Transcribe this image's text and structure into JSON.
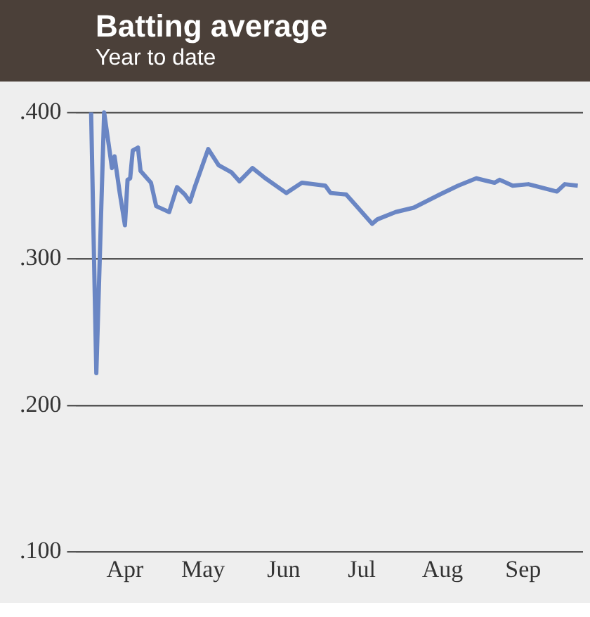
{
  "chart_data": {
    "type": "line",
    "title": "Batting average",
    "subtitle": "Year to date",
    "x": [
      "--04-02",
      "--04-04",
      "--04-07",
      "--04-09",
      "--04-10",
      "--04-11",
      "--04-13",
      "--04-15",
      "--04-16",
      "--04-17",
      "--04-18",
      "--04-20",
      "--04-21",
      "--04-25",
      "--04-27",
      "--05-02",
      "--05-05",
      "--05-08",
      "--05-10",
      "--05-12",
      "--05-17",
      "--05-21",
      "--05-26",
      "--05-29",
      "--06-03",
      "--06-08",
      "--06-16",
      "--06-22",
      "--07-01",
      "--07-03",
      "--07-09",
      "--07-15",
      "--07-19",
      "--07-21",
      "--07-28",
      "--08-04",
      "--08-14",
      "--08-21",
      "--08-28",
      "--09-04",
      "--09-06",
      "--09-11",
      "--09-17",
      "--09-28",
      "--10-01",
      "--10-06"
    ],
    "series": [
      {
        "color": "#6a86c4",
        "values": [
          0.4,
          0.222,
          0.4,
          0.375,
          0.362,
          0.37,
          0.345,
          0.323,
          0.354,
          0.355,
          0.374,
          0.376,
          0.36,
          0.352,
          0.336,
          0.332,
          0.349,
          0.344,
          0.339,
          0.35,
          0.375,
          0.364,
          0.359,
          0.353,
          0.362,
          0.355,
          0.345,
          0.352,
          0.35,
          0.345,
          0.344,
          0.332,
          0.324,
          0.327,
          0.332,
          0.335,
          0.344,
          0.35,
          0.355,
          0.352,
          0.354,
          0.35,
          0.351,
          0.346,
          0.351,
          0.35
        ]
      }
    ],
    "xlim": [
      "--03-27",
      "--10-08"
    ],
    "xticks": [
      {
        "value": "--04-15",
        "label": "Apr"
      },
      {
        "value": "--05-15",
        "label": "May"
      },
      {
        "value": "--06-15",
        "label": "Jun"
      },
      {
        "value": "--07-15",
        "label": "Jul"
      },
      {
        "value": "--08-15",
        "label": "Aug"
      },
      {
        "value": "--09-15",
        "label": "Sep"
      }
    ],
    "ylim": [
      0.1,
      0.4
    ],
    "yticks": [
      {
        "value": 0.1,
        "label": ".100"
      },
      {
        "value": 0.2,
        "label": ".200"
      },
      {
        "value": 0.3,
        "label": ".300"
      },
      {
        "value": 0.4,
        "label": ".400"
      }
    ],
    "grid": "y",
    "legend": false,
    "marker": "none",
    "line_style": "solid"
  }
}
